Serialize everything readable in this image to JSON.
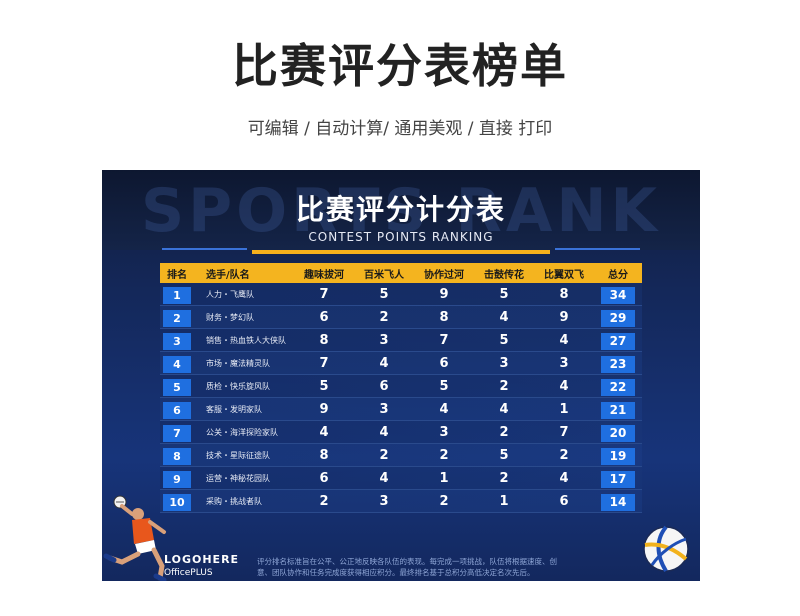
{
  "page": {
    "title": "比赛评分表榜单",
    "subtitle": "可编辑 / 自动计算/ 通用美观 / 直接 打印"
  },
  "card": {
    "watermark": "SPORTS RANK",
    "title": "比赛评分计分表",
    "subtitle": "CONTEST  POINTS  RANKING"
  },
  "table": {
    "headers": [
      "排名",
      "选手/队名",
      "趣味拔河",
      "百米飞人",
      "协作过河",
      "击鼓传花",
      "比翼双飞",
      "总分"
    ],
    "rows": [
      {
        "rank": "1",
        "name": "人力・飞鹰队",
        "s1": "7",
        "s2": "5",
        "s3": "9",
        "s4": "5",
        "s5": "8",
        "total": "34"
      },
      {
        "rank": "2",
        "name": "财务・梦幻队",
        "s1": "6",
        "s2": "2",
        "s3": "8",
        "s4": "4",
        "s5": "9",
        "total": "29"
      },
      {
        "rank": "3",
        "name": "销售・热血铁人大侠队",
        "s1": "8",
        "s2": "3",
        "s3": "7",
        "s4": "5",
        "s5": "4",
        "total": "27"
      },
      {
        "rank": "4",
        "name": "市场・魔法精灵队",
        "s1": "7",
        "s2": "4",
        "s3": "6",
        "s4": "3",
        "s5": "3",
        "total": "23"
      },
      {
        "rank": "5",
        "name": "质检・快乐旋风队",
        "s1": "5",
        "s2": "6",
        "s3": "5",
        "s4": "2",
        "s5": "4",
        "total": "22"
      },
      {
        "rank": "6",
        "name": "客服・发明家队",
        "s1": "9",
        "s2": "3",
        "s3": "4",
        "s4": "4",
        "s5": "1",
        "total": "21"
      },
      {
        "rank": "7",
        "name": "公关・海洋探险家队",
        "s1": "4",
        "s2": "4",
        "s3": "3",
        "s4": "2",
        "s5": "7",
        "total": "20"
      },
      {
        "rank": "8",
        "name": "技术・星际征途队",
        "s1": "8",
        "s2": "2",
        "s3": "2",
        "s4": "5",
        "s5": "2",
        "total": "19"
      },
      {
        "rank": "9",
        "name": "运营・神秘花园队",
        "s1": "6",
        "s2": "4",
        "s3": "1",
        "s4": "2",
        "s5": "4",
        "total": "17"
      },
      {
        "rank": "10",
        "name": "采购・挑战者队",
        "s1": "2",
        "s2": "3",
        "s3": "2",
        "s4": "1",
        "s5": "6",
        "total": "14"
      }
    ]
  },
  "footer": {
    "brand": "LOGOHERE",
    "brand_sub": "OfficePLUS",
    "note": "评分排名标准旨在公平、公正地反映各队伍的表现。每完成一项挑战，队伍将根据速度、创意、团队协作和任务完成度获得相应积分。最终排名基于总积分高低决定名次先后。"
  },
  "colors": {
    "header_bar": "#f4b41f",
    "rank_badge": "#1f6fe0",
    "card_bg": "#17347a"
  }
}
